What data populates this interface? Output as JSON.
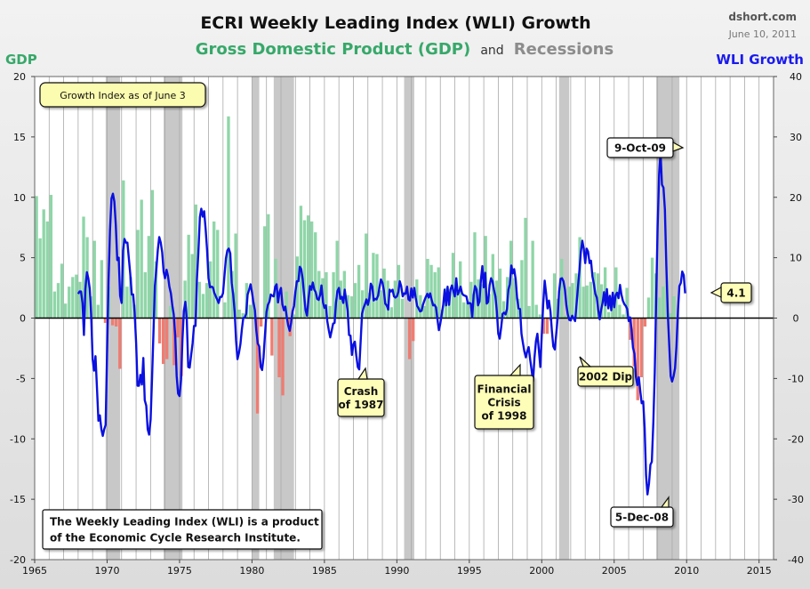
{
  "header": {
    "title": "ECRI Weekly Leading Index (WLI) Growth",
    "subtitle_gdp": "Gross Domestic Product (GDP)",
    "subtitle_and": "and",
    "subtitle_recessions": "Recessions",
    "source": "dshort.com",
    "date": "June 10, 2011"
  },
  "colors": {
    "gdp_positive": "#8fd6a8",
    "gdp_negative": "#ef7c72",
    "wli_line": "#0a10e0",
    "recession": "#c8c8c8",
    "gdp_title": "#37a86a",
    "recession_title": "#8c8c8c",
    "wli_title": "#1a1aee",
    "callout_bg": "#fefeb8"
  },
  "chart_data": {
    "type": "bar+line",
    "x_range": [
      1965,
      2016
    ],
    "x_ticks": [
      "1965",
      "1970",
      "1975",
      "1980",
      "1985",
      "1990",
      "1995",
      "2000",
      "2005",
      "2010",
      "2015"
    ],
    "y_left": {
      "label": "GDP",
      "range": [
        -20,
        20
      ],
      "ticks": [
        "20",
        "15",
        "10",
        "5",
        "0",
        "-5",
        "-10",
        "-15",
        "-20"
      ]
    },
    "y_right": {
      "label": "WLI Growth",
      "range": [
        -40,
        40
      ],
      "ticks": [
        "40",
        "30",
        "20",
        "10",
        "0",
        "-10",
        "-20",
        "-30",
        "-40"
      ]
    },
    "recessions": [
      [
        1969.9,
        1970.9
      ],
      [
        1973.9,
        1975.2
      ],
      [
        1980.0,
        1980.5
      ],
      [
        1981.5,
        1982.9
      ],
      [
        1990.5,
        1991.2
      ],
      [
        2001.2,
        2001.9
      ],
      [
        2007.9,
        2009.5
      ]
    ],
    "gdp_quarterly": {
      "start": 1965.0,
      "step": 0.25,
      "values": [
        10.1,
        6.6,
        9.0,
        8.0,
        10.2,
        2.2,
        2.9,
        4.5,
        1.2,
        2.6,
        3.4,
        3.6,
        3.0,
        8.4,
        6.7,
        1.8,
        6.4,
        1.1,
        4.8,
        -0.4,
        2.6,
        -0.6,
        -0.7,
        -4.2,
        11.4,
        2.6,
        3.4,
        1.1,
        7.3,
        9.8,
        3.8,
        6.8,
        10.6,
        4.7,
        -2.1,
        -3.8,
        -3.4,
        1.0,
        -3.9,
        -1.6,
        -4.8,
        3.1,
        6.9,
        5.3,
        9.4,
        3.0,
        2.0,
        2.9,
        4.7,
        8.0,
        7.3,
        0.0,
        1.3,
        16.7,
        3.9,
        7.0,
        0.7,
        0.4,
        2.9,
        1.1,
        1.3,
        -7.9,
        -0.7,
        7.6,
        8.6,
        -3.1,
        4.9,
        -4.9,
        -6.4,
        2.2,
        -1.5,
        0.3,
        5.1,
        9.3,
        8.1,
        8.5,
        8.0,
        7.1,
        3.9,
        3.3,
        3.8,
        1.0,
        3.8,
        6.4,
        3.1,
        3.9,
        1.9,
        1.8,
        2.9,
        4.4,
        2.3,
        7.0,
        2.1,
        5.4,
        5.3,
        2.3,
        4.1,
        3.1,
        0.9,
        3.1,
        4.4,
        1.6,
        0.0,
        -3.4,
        -1.9,
        3.2,
        1.9,
        1.0,
        4.9,
        4.4,
        3.8,
        4.2,
        0.7,
        2.5,
        2.0,
        5.4,
        2.7,
        4.7,
        1.3,
        1.3,
        3.0,
        7.1,
        3.2,
        2.8,
        6.8,
        2.0,
        5.3,
        3.1,
        4.1,
        1.4,
        3.4,
        6.4,
        3.3,
        1.6,
        4.8,
        8.3,
        1.0,
        6.4,
        1.1,
        0.3,
        -1.3,
        -1.3,
        -0.2,
        3.7,
        1.6,
        4.9,
        0.2,
        2.6,
        2.9,
        3.7,
        6.7,
        2.6,
        2.7,
        3.0,
        3.8,
        3.7,
        2.8,
        4.2,
        0.5,
        1.6,
        4.2,
        1.1,
        0.3,
        2.5,
        -1.8,
        -4.0,
        -6.8,
        -4.9,
        -0.7,
        1.7,
        5.0,
        3.7,
        1.7,
        2.6,
        3.1,
        0.4,
        1.8
      ]
    },
    "wli_series": {
      "start": 1968.0,
      "step": 0.1,
      "values": [
        4.0,
        4.4,
        4.4,
        2.5,
        -2.8,
        4.8,
        7.6,
        6.6,
        4.9,
        0.6,
        -6.8,
        -8.7,
        -6.3,
        -11.7,
        -17.0,
        -16.1,
        -18.4,
        -19.5,
        -18.4,
        -17.7,
        -5.2,
        6.3,
        14.5,
        19.8,
        20.6,
        19.3,
        15.5,
        9.6,
        10.0,
        3.7,
        2.5,
        11.2,
        13.1,
        12.5,
        12.5,
        9.9,
        7.3,
        3.9,
        3.9,
        1.0,
        -4.1,
        -11.2,
        -11.2,
        -9.4,
        -11.0,
        -6.6,
        -13.6,
        -14.5,
        -18.4,
        -19.3,
        -16.8,
        -10.0,
        -2.4,
        5.3,
        8.2,
        11.3,
        13.4,
        12.5,
        10.9,
        7.7,
        6.6,
        8.0,
        7.0,
        5.2,
        4.1,
        2.1,
        0.6,
        -2.9,
        -9.6,
        -12.5,
        -12.9,
        -10.2,
        -3.6,
        1.2,
        2.7,
        -0.3,
        -8.1,
        -8.2,
        -6.1,
        -4.2,
        -1.3,
        -1.3,
        6.5,
        10.8,
        16.7,
        18.1,
        16.8,
        17.7,
        14.7,
        11.3,
        6.6,
        5.1,
        5.2,
        5.1,
        4.2,
        3.6,
        3.1,
        2.5,
        3.5,
        3.5,
        4.1,
        7.1,
        9.9,
        11.2,
        11.5,
        10.7,
        5.8,
        4.0,
        1.1,
        -3.7,
        -6.8,
        -5.8,
        -4.3,
        -1.9,
        0.0,
        0.1,
        0.7,
        3.9,
        4.7,
        5.6,
        4.3,
        2.6,
        1.3,
        -2.1,
        -4.2,
        -4.7,
        -8.1,
        -8.6,
        -6.5,
        -2.6,
        1.0,
        2.2,
        2.7,
        3.9,
        3.7,
        3.6,
        5.2,
        5.6,
        2.6,
        4.3,
        5.0,
        2.3,
        1.3,
        1.9,
        0.2,
        -1.2,
        -2.1,
        -0.8,
        1.1,
        2.0,
        4.4,
        6.1,
        6.1,
        8.5,
        8.1,
        6.5,
        3.7,
        1.3,
        0.4,
        3.2,
        5.3,
        4.7,
        5.9,
        4.7,
        4.3,
        3.2,
        3.0,
        3.8,
        5.4,
        2.6,
        1.7,
        2.1,
        -0.5,
        -2.0,
        -3.2,
        -2.1,
        -0.9,
        -0.8,
        2.6,
        4.5,
        5.0,
        3.2,
        3.5,
        2.5,
        4.7,
        3.0,
        1.2,
        -2.8,
        -2.9,
        -6.1,
        -4.3,
        -3.9,
        -6.2,
        -8.1,
        -8.5,
        -3.9,
        0.7,
        1.7,
        2.3,
        3.1,
        2.2,
        3.3,
        5.7,
        5.2,
        2.9,
        3.2,
        3.1,
        3.7,
        5.1,
        6.4,
        5.9,
        4.6,
        2.4,
        2.1,
        1.4,
        4.7,
        4.4,
        4.7,
        3.6,
        3.4,
        3.6,
        4.3,
        6.1,
        5.3,
        3.6,
        4.1,
        4.0,
        5.2,
        3.1,
        2.9,
        4.9,
        3.4,
        5.0,
        3.4,
        2.0,
        1.6,
        1.1,
        1.2,
        2.2,
        2.9,
        3.5,
        4.0,
        3.4,
        4.1,
        3.0,
        2.1,
        2.2,
        1.8,
        -0.2,
        -2.0,
        -0.9,
        0.7,
        2.2,
        4.7,
        2.1,
        5.2,
        2.2,
        4.7,
        5.4,
        4.5,
        3.6,
        6.6,
        3.9,
        4.4,
        5.2,
        4.1,
        3.8,
        3.7,
        3.6,
        2.4,
        2.5,
        2.4,
        0.1,
        3.8,
        5.3,
        4.7,
        2.1,
        2.7,
        6.4,
        8.6,
        5.1,
        7.5,
        2.4,
        2.7,
        5.4,
        6.6,
        6.1,
        4.7,
        3.6,
        1.1,
        -2.6,
        -3.4,
        -1.5,
        0.7,
        0.9,
        0.6,
        1.5,
        4.7,
        5.6,
        8.7,
        7.4,
        8.1,
        6.4,
        3.3,
        1.6,
        1.5,
        -2.6,
        -4.1,
        -5.5,
        -6.5,
        -5.5,
        -4.8,
        -6.9,
        -8.6,
        -10.5,
        -6.6,
        -3.8,
        -2.6,
        -5.2,
        -8.1,
        -2.9,
        2.2,
        6.2,
        4.1,
        1.6,
        2.9,
        1.1,
        -2.1,
        -4.7,
        -5.2,
        -2.6,
        0.0,
        4.4,
        6.5,
        6.6,
        6.1,
        4.7,
        2.1,
        0.6,
        -0.3,
        -0.4,
        0.4,
        0.0,
        -0.5,
        2.2,
        5.1,
        7.9,
        11.0,
        12.8,
        11.5,
        9.1,
        11.5,
        11.0,
        9.1,
        9.5,
        6.9,
        5.6,
        4.0,
        3.4,
        1.4,
        -0.2,
        1.4,
        2.5,
        4.3,
        2.1,
        4.8,
        1.6,
        3.7,
        1.3,
        4.2,
        1.8,
        3.8,
        4.2,
        3.3,
        5.5,
        3.9,
        2.9,
        2.3,
        2.0,
        1.5,
        -0.5,
        0.1,
        -1.9,
        -4.9,
        -5.9,
        -9.7,
        -11.1,
        -9.8,
        -12.1,
        -14.1,
        -13.8,
        -18.1,
        -26.0,
        -29.2,
        -27.4,
        -24.3,
        -23.8,
        -17.3,
        -9.0,
        3.3,
        14.9,
        23.8,
        27.5,
        22.1,
        21.6,
        18.0,
        8.8,
        0.6,
        -4.5,
        -9.6,
        -10.5,
        -9.6,
        -8.3,
        -4.7,
        1.3,
        5.3,
        5.8,
        7.7,
        7.1,
        4.1
      ]
    },
    "callouts": [
      {
        "text": "9-Oct-09"
      },
      {
        "text": "5-Dec-08"
      },
      {
        "text": "4.1"
      },
      {
        "lines": [
          "Crash",
          "of 1987"
        ]
      },
      {
        "lines": [
          "Financial",
          "Crisis",
          "of 1998"
        ]
      },
      {
        "text": "2002 Dip"
      },
      {
        "text": "Growth Index as of June 3"
      },
      {
        "lines": [
          "The Weekly Leading Index (WLI) is a product",
          "of the Economic Cycle Research Institute."
        ]
      }
    ]
  }
}
